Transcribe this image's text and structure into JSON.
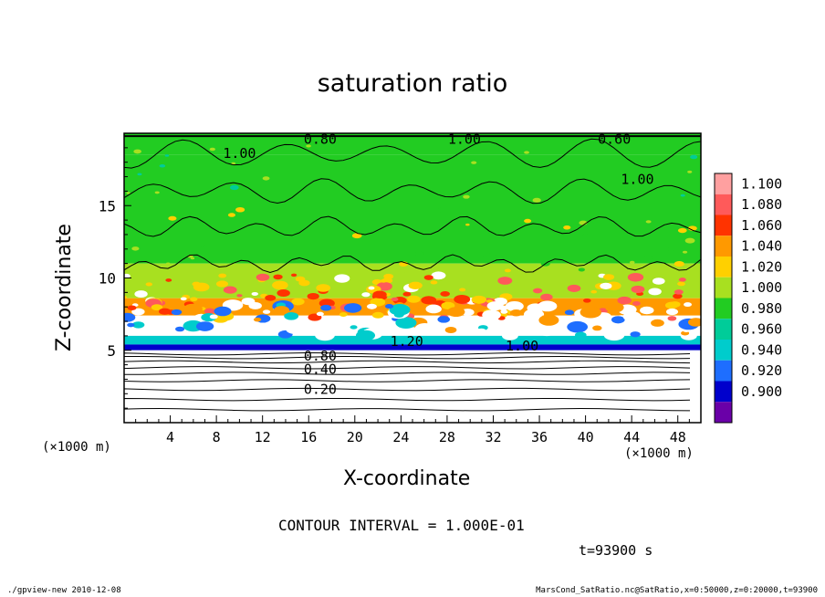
{
  "chart_data": {
    "type": "heatmap",
    "title": "saturation ratio",
    "xlabel": "X-coordinate",
    "ylabel": "Z-coordinate",
    "x_unit_label": "(×1000 m)",
    "y_unit_label": "(×1000 m)",
    "xlim": [
      0,
      50
    ],
    "ylim": [
      0,
      20
    ],
    "x_ticks": [
      4,
      8,
      12,
      16,
      20,
      24,
      28,
      32,
      36,
      40,
      44,
      48
    ],
    "y_ticks": [
      5,
      10,
      15
    ],
    "colorbar": {
      "levels": [
        "1.100",
        "1.080",
        "1.060",
        "1.040",
        "1.020",
        "1.000",
        "0.980",
        "0.960",
        "0.940",
        "0.920",
        "0.900"
      ],
      "colors": [
        "#ffa0a0",
        "#ff5a5a",
        "#ff3300",
        "#ff9900",
        "#ffd000",
        "#a8e020",
        "#22cc22",
        "#00cc99",
        "#00cccc",
        "#1e6eff",
        "#0000cc",
        "#6a00a8"
      ]
    },
    "bands": [
      {
        "z_from": 18.5,
        "z_to": 20.0,
        "value": 1.0
      },
      {
        "z_from": 11.0,
        "z_to": 18.5,
        "value": 1.0
      },
      {
        "z_from": 8.6,
        "z_to": 11.0,
        "value": 1.02
      },
      {
        "z_from": 7.4,
        "z_to": 8.6,
        "value": 1.05
      },
      {
        "z_from": 6.0,
        "z_to": 7.4,
        "value": 1.1
      },
      {
        "z_from": 5.4,
        "z_to": 6.0,
        "value": 0.96
      },
      {
        "z_from": 5.0,
        "z_to": 5.4,
        "value": 0.92
      },
      {
        "z_from": 0.0,
        "z_to": 5.0,
        "value": 0.4
      }
    ],
    "contour_labels": [
      {
        "text": "0.80",
        "x": 17.0,
        "z": 19.6
      },
      {
        "text": "1.00",
        "x": 29.5,
        "z": 19.6
      },
      {
        "text": "0.60",
        "x": 42.5,
        "z": 19.6
      },
      {
        "text": "1.00",
        "x": 10.0,
        "z": 18.6
      },
      {
        "text": "1.00",
        "x": 44.5,
        "z": 16.8
      },
      {
        "text": "1.20",
        "x": 24.5,
        "z": 5.6
      },
      {
        "text": "1.00",
        "x": 34.5,
        "z": 5.3
      },
      {
        "text": "0.80",
        "x": 17.0,
        "z": 4.6
      },
      {
        "text": "0.40",
        "x": 17.0,
        "z": 3.7
      },
      {
        "text": "0.20",
        "x": 17.0,
        "z": 2.3
      }
    ],
    "subsurface_contours_z": [
      0.9,
      1.6,
      2.3,
      2.9,
      3.4,
      3.8,
      4.2,
      4.5,
      4.75
    ]
  },
  "annotations": {
    "contour_interval": "CONTOUR INTERVAL = 1.000E-01",
    "time": "t=93900 s",
    "footer_left": "./gpview-new  2010-12-08",
    "footer_right": "MarsCond_SatRatio.nc@SatRatio,x=0:50000,z=0:20000,t=93900"
  }
}
